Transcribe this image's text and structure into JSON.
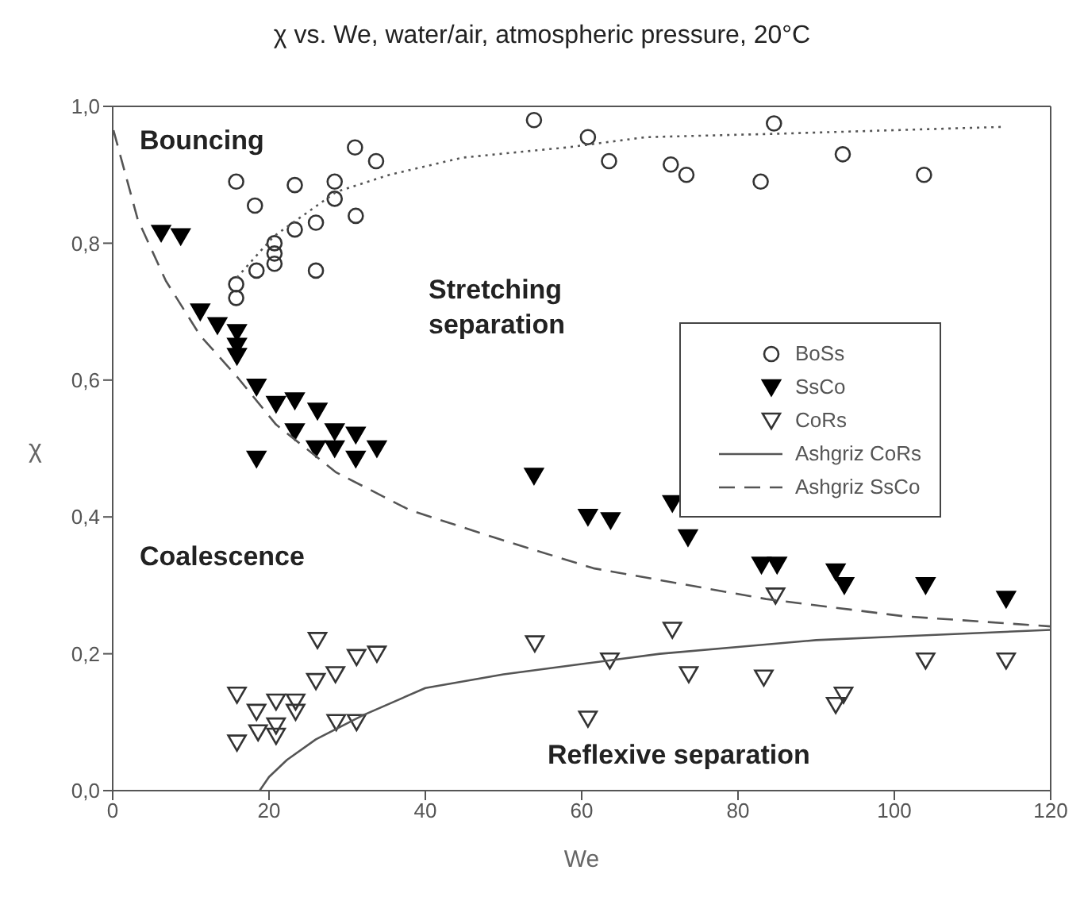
{
  "chart_data": {
    "type": "scatter",
    "title": "χ vs. We, water/air, atmospheric pressure, 20°C",
    "xlabel": "We",
    "ylabel": "χ",
    "xlim": [
      0,
      120
    ],
    "xticks": [
      0,
      20,
      40,
      60,
      80,
      100,
      120
    ],
    "ylim": [
      0,
      1
    ],
    "yticks": [
      {
        "value": 0,
        "label": "0,0"
      },
      {
        "value": 0.2,
        "label": "0,2"
      },
      {
        "value": 0.4,
        "label": "0,4"
      },
      {
        "value": 0.6,
        "label": "0,6"
      },
      {
        "value": 0.8,
        "label": "0,8"
      },
      {
        "value": 1,
        "label": "1,0"
      }
    ],
    "grid": false,
    "legend": "right",
    "annotations": [
      "Bouncing",
      "Stretching separation",
      "Coalescence",
      "Reflexive separation"
    ],
    "series": [
      {
        "name": "BoSs",
        "marker": "circle",
        "color": "#333333",
        "x": [
          15.8,
          18.2,
          23.3,
          28.4,
          28.4,
          31.0,
          33.7,
          31.1,
          26.0,
          23.3,
          20.7,
          20.7,
          20.7,
          18.4,
          15.8,
          15.8,
          26.0,
          53.9,
          60.8,
          63.5,
          71.4,
          73.4,
          84.6,
          82.9,
          93.4,
          103.8
        ],
        "values": [
          0.89,
          0.855,
          0.885,
          0.89,
          0.865,
          0.94,
          0.92,
          0.84,
          0.83,
          0.82,
          0.8,
          0.785,
          0.77,
          0.76,
          0.74,
          0.72,
          0.76,
          0.98,
          0.955,
          0.92,
          0.915,
          0.9,
          0.975,
          0.89,
          0.93,
          0.9
        ]
      },
      {
        "name": "SsCo",
        "marker": "triangle",
        "color": "#000000",
        "x": [
          6.2,
          8.7,
          11.2,
          13.4,
          15.9,
          15.9,
          15.9,
          18.4,
          20.9,
          23.3,
          26.2,
          23.3,
          28.4,
          31.1,
          18.4,
          26.0,
          28.4,
          31.1,
          33.8,
          53.9,
          60.8,
          63.7,
          71.6,
          73.6,
          83.0,
          85.0,
          92.5,
          93.6,
          104.0,
          114.3
        ],
        "values": [
          0.815,
          0.81,
          0.7,
          0.68,
          0.67,
          0.65,
          0.635,
          0.59,
          0.565,
          0.57,
          0.555,
          0.525,
          0.525,
          0.52,
          0.485,
          0.5,
          0.5,
          0.485,
          0.5,
          0.46,
          0.4,
          0.395,
          0.42,
          0.37,
          0.33,
          0.33,
          0.32,
          0.3,
          0.3,
          0.28
        ]
      },
      {
        "name": "CoRs",
        "marker": "triangle",
        "color": "#333333",
        "x": [
          15.9,
          15.9,
          18.4,
          18.6,
          20.9,
          20.9,
          20.9,
          23.4,
          23.4,
          26.0,
          26.2,
          28.5,
          31.2,
          33.8,
          28.6,
          31.2,
          54.0,
          60.8,
          63.6,
          71.6,
          73.7,
          83.3,
          84.8,
          92.5,
          93.5,
          104.0,
          114.3
        ],
        "values": [
          0.14,
          0.07,
          0.115,
          0.085,
          0.13,
          0.095,
          0.08,
          0.13,
          0.115,
          0.16,
          0.22,
          0.17,
          0.195,
          0.2,
          0.1,
          0.1,
          0.215,
          0.105,
          0.19,
          0.235,
          0.17,
          0.165,
          0.285,
          0.125,
          0.14,
          0.19,
          0.19
        ]
      },
      {
        "name": "Ashgriz CoRs",
        "type": "line",
        "marker": "none",
        "line_style": "solid",
        "color": "#555555",
        "x": [
          18.8,
          20,
          22.3,
          26,
          32,
          40,
          50,
          60,
          70,
          80,
          90,
          100,
          110,
          120
        ],
        "values": [
          0,
          0.02,
          0.045,
          0.075,
          0.11,
          0.15,
          0.17,
          0.185,
          0.2,
          0.21,
          0.22,
          0.225,
          0.23,
          0.235
        ]
      },
      {
        "name": "Ashgriz SsCo",
        "type": "line",
        "marker": "none",
        "line_style": "dashed",
        "color": "#555555",
        "x": [
          0.1,
          3.2,
          6.8,
          11.2,
          15.9,
          20.9,
          28.6,
          38,
          48.8,
          61.5,
          83.6,
          101.1,
          120
        ],
        "values": [
          0.965,
          0.835,
          0.745,
          0.665,
          0.605,
          0.535,
          0.465,
          0.41,
          0.37,
          0.325,
          0.28,
          0.255,
          0.24
        ]
      },
      {
        "type": "line",
        "marker": "none",
        "line_style": "dotted",
        "color": "#555555",
        "x": [
          15.9,
          20.6,
          28.6,
          35.4,
          44.7,
          53.5,
          58.1,
          68.2,
          85,
          113.8
        ],
        "values": [
          0.75,
          0.81,
          0.875,
          0.9,
          0.925,
          0.935,
          0.94,
          0.955,
          0.96,
          0.97
        ]
      }
    ]
  }
}
